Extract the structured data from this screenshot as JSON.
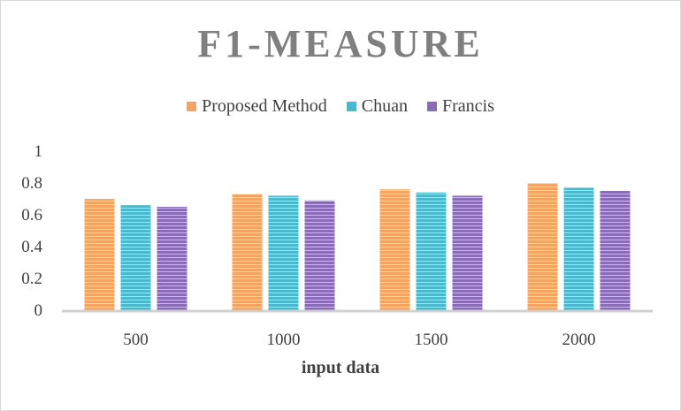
{
  "chart_data": {
    "type": "bar",
    "title": "F1-MEASURE",
    "xlabel": "input data",
    "ylabel": "",
    "categories": [
      "500",
      "1000",
      "1500",
      "2000"
    ],
    "ylim": [
      0,
      1
    ],
    "yticks": [
      "0",
      "0.2",
      "0.4",
      "0.6",
      "0.8",
      "1"
    ],
    "grid": false,
    "legend_position": "top",
    "series": [
      {
        "name": "Proposed Method",
        "color": "#f4a460",
        "values": [
          0.7,
          0.73,
          0.76,
          0.8
        ]
      },
      {
        "name": "Chuan",
        "color": "#4bb8cc",
        "values": [
          0.66,
          0.72,
          0.74,
          0.77
        ]
      },
      {
        "name": "Francis",
        "color": "#8a6bb5",
        "values": [
          0.65,
          0.69,
          0.72,
          0.75
        ]
      }
    ]
  }
}
